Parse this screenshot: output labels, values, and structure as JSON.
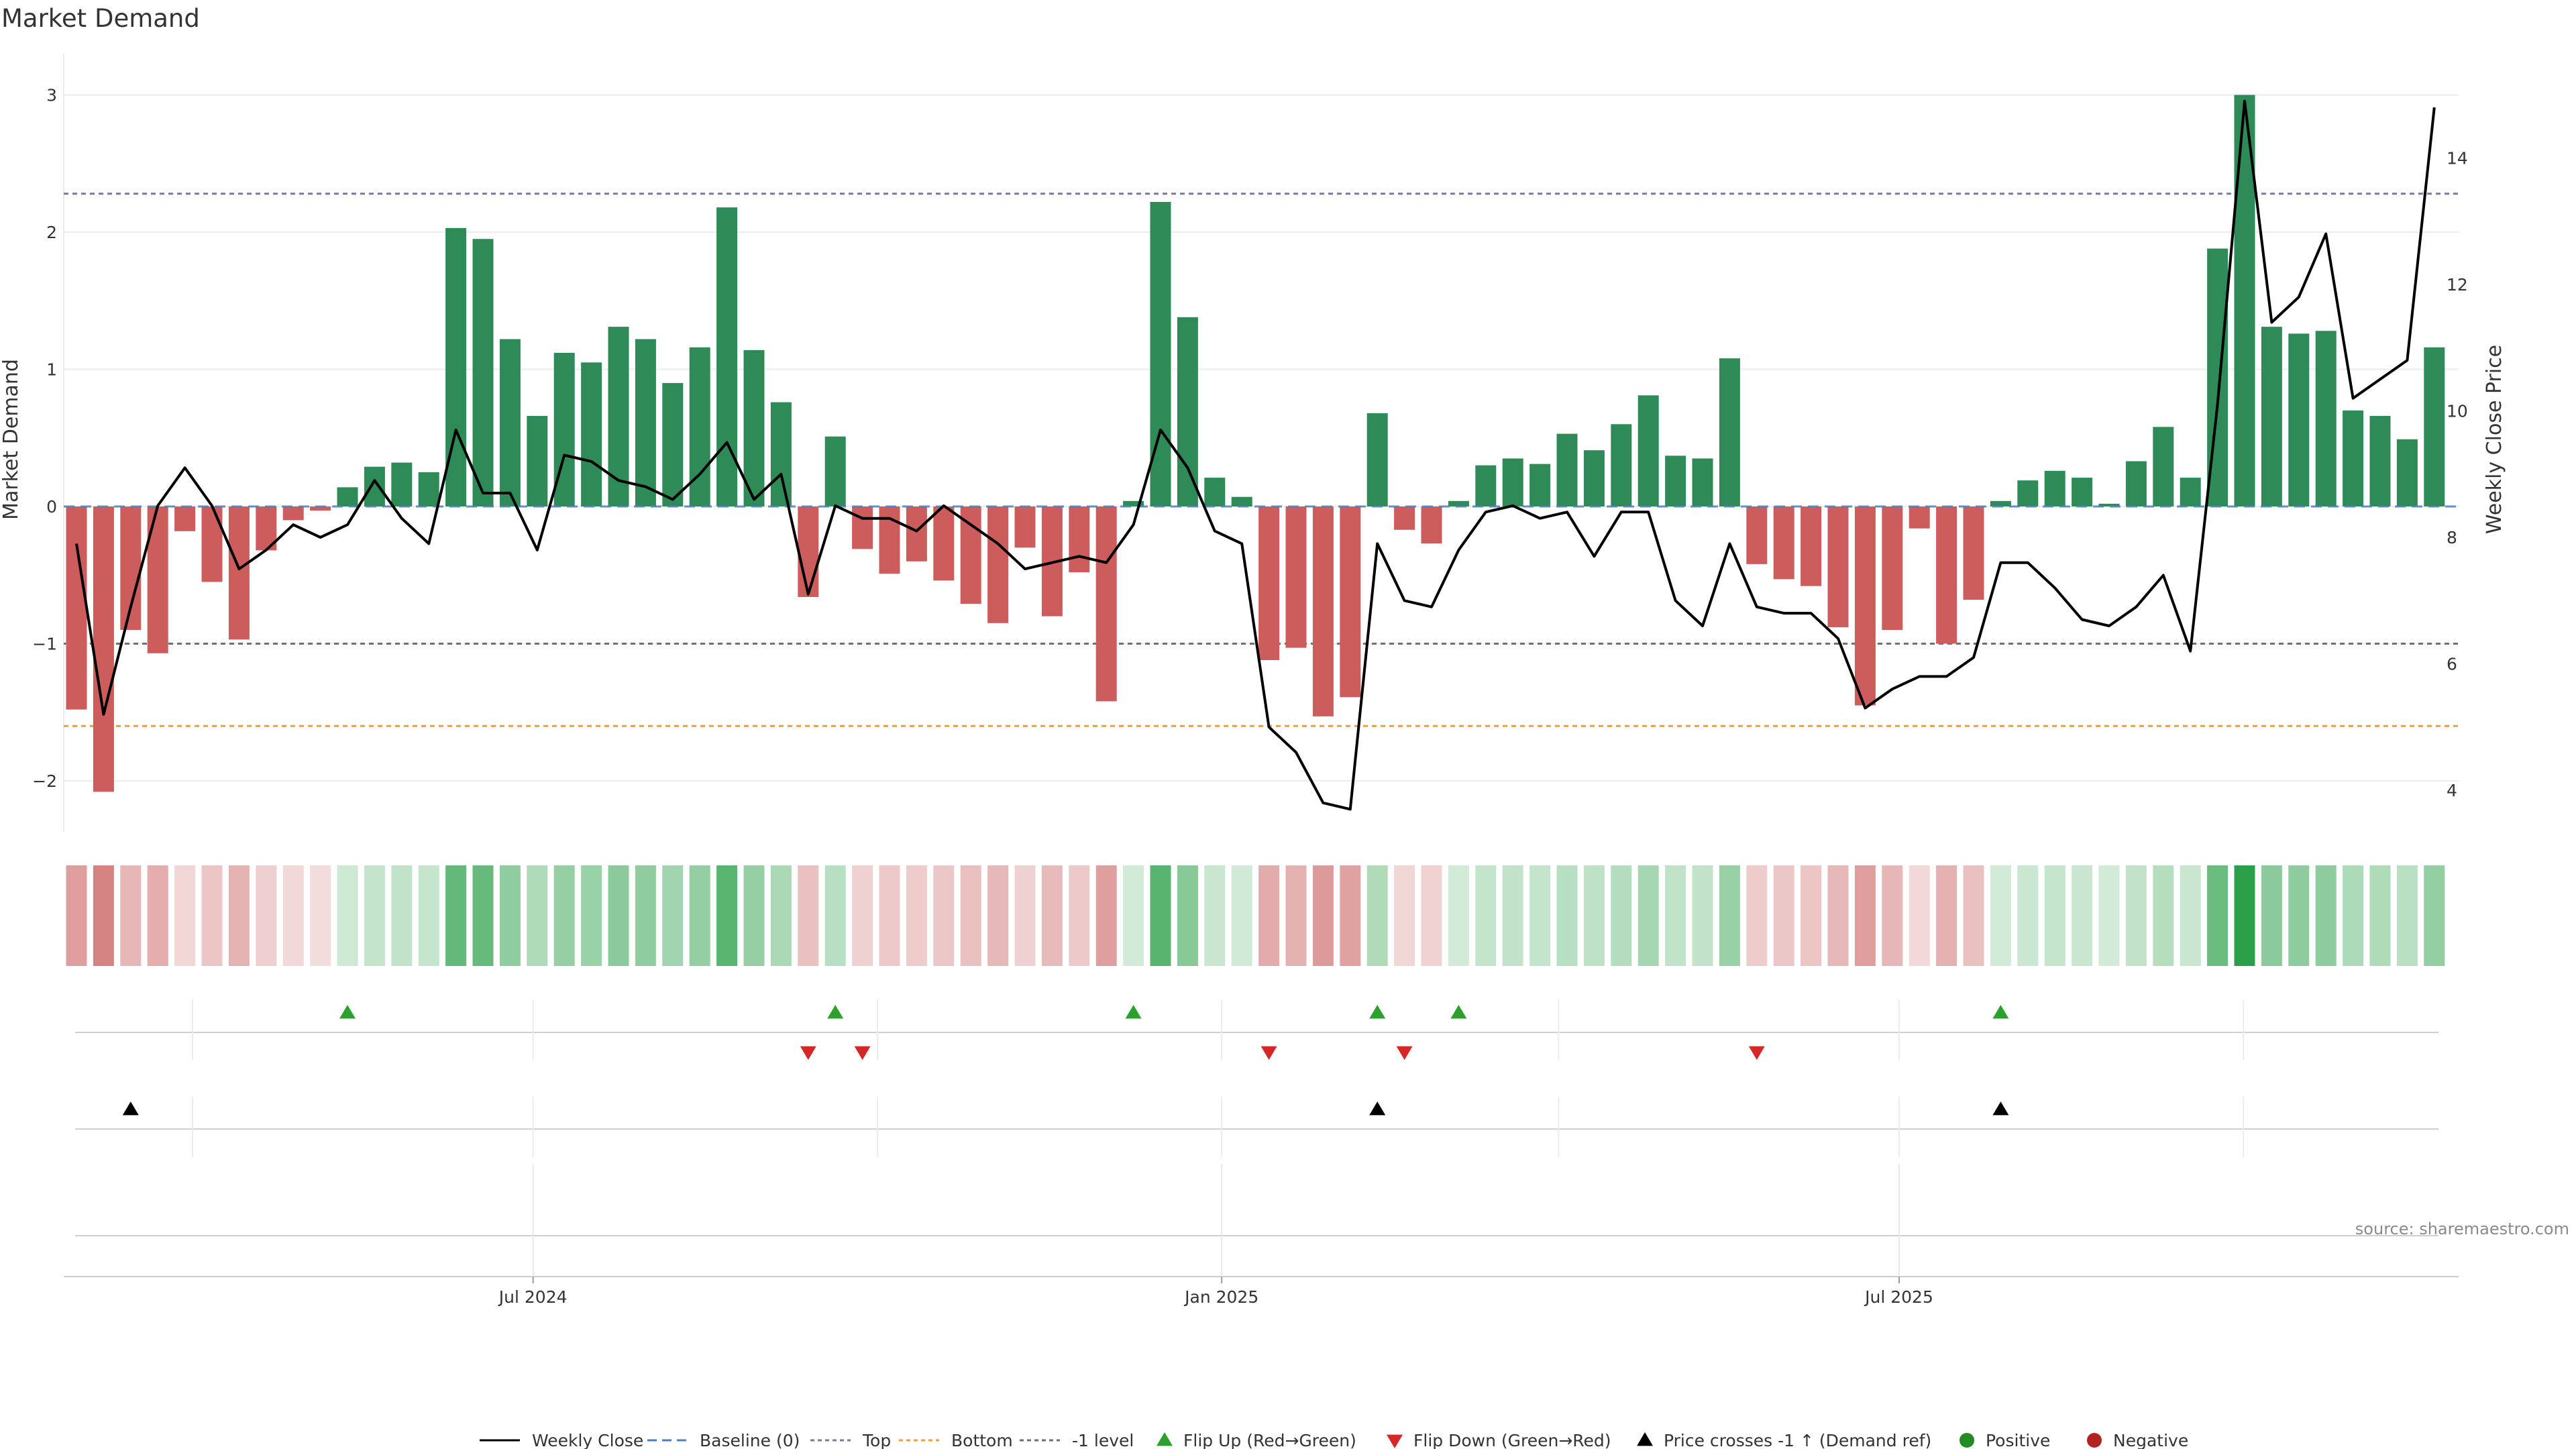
{
  "chart_data": {
    "type": "bar",
    "title": "Market Demand",
    "ylabel": "Market Demand",
    "y2label": "Weekly Close Price",
    "ylim": [
      -2.4,
      3.2
    ],
    "y2lim": [
      3.2,
      15.4
    ],
    "yticks": [
      -2,
      -1,
      0,
      1,
      2,
      3
    ],
    "yticklabels": [
      "−2",
      "−1",
      "0",
      "1",
      "2",
      "3"
    ],
    "y2ticks": [
      4,
      6,
      8,
      10,
      12,
      14
    ],
    "y2ticklabels": [
      "4",
      "6",
      "8",
      "10",
      "12",
      "14"
    ],
    "x_start": "2024-03-01",
    "x_end": "2025-11-21",
    "xticks": [
      {
        "date": "2024-07-01",
        "label": "Jul 2024"
      },
      {
        "date": "2025-01-01",
        "label": "Jan 2025"
      },
      {
        "date": "2025-07-01",
        "label": "Jul 2025"
      }
    ],
    "weekly_grid_dates": [
      "2024-04-01",
      "2024-07-01",
      "2024-10-01",
      "2025-01-01",
      "2025-04-01",
      "2025-07-01",
      "2025-10-01"
    ],
    "levels": {
      "baseline": 0,
      "top": 2.28,
      "bottom": -1.6,
      "minus_one": -1
    },
    "colors": {
      "positive": "#2e8b57",
      "negative": "#cd5c5c",
      "price": "#000000",
      "baseline": "#4a7fc1",
      "top": "#7a7a9e",
      "bottom": "#f0a030",
      "minus_one": "#707070",
      "flip_up": "#2ca02c",
      "flip_down": "#d62728",
      "cross": "#000000",
      "positive_dot": "#228b22",
      "negative_dot": "#b22222"
    },
    "series": [
      {
        "name": "Market Demand",
        "type": "bar",
        "values": [
          -1.48,
          -2.08,
          -0.9,
          -1.07,
          -0.18,
          -0.55,
          -0.97,
          -0.32,
          -0.1,
          -0.03,
          0.14,
          0.29,
          0.32,
          0.25,
          2.03,
          1.95,
          1.22,
          0.66,
          1.12,
          1.05,
          1.31,
          1.22,
          0.9,
          1.16,
          2.18,
          1.14,
          0.76,
          -0.66,
          0.51,
          -0.31,
          -0.49,
          -0.4,
          -0.54,
          -0.71,
          -0.85,
          -0.3,
          -0.8,
          -0.48,
          -1.42,
          0.04,
          2.22,
          1.38,
          0.21,
          0.07,
          -1.12,
          -1.03,
          -1.53,
          -1.39,
          0.68,
          -0.17,
          -0.27,
          0.04,
          0.3,
          0.35,
          0.31,
          0.53,
          0.41,
          0.6,
          0.81,
          0.37,
          0.35,
          1.08,
          -0.42,
          -0.53,
          -0.58,
          -0.88,
          -1.45,
          -0.9,
          -0.16,
          -1.0,
          -0.68,
          0.04,
          0.19,
          0.26,
          0.21,
          0.02,
          0.33,
          0.58,
          0.21,
          1.88,
          3.0,
          1.31,
          1.26,
          1.28,
          0.7,
          0.66,
          0.49,
          1.16
        ]
      },
      {
        "name": "Weekly Close",
        "type": "line",
        "values": [
          7.9,
          5.2,
          6.9,
          8.5,
          9.1,
          8.5,
          7.5,
          7.8,
          8.2,
          8.0,
          8.2,
          8.9,
          8.3,
          7.9,
          9.7,
          8.7,
          8.7,
          7.8,
          9.3,
          9.2,
          8.9,
          8.8,
          8.6,
          9.0,
          9.5,
          8.6,
          9.0,
          7.1,
          8.5,
          8.3,
          8.3,
          8.1,
          8.5,
          8.2,
          7.9,
          7.5,
          7.6,
          7.7,
          7.6,
          8.2,
          9.7,
          9.1,
          8.1,
          7.9,
          5.0,
          4.6,
          3.8,
          3.7,
          7.9,
          7.0,
          6.9,
          7.8,
          8.4,
          8.5,
          8.3,
          8.4,
          7.7,
          8.4,
          8.4,
          7.0,
          6.6,
          7.9,
          6.9,
          6.8,
          6.8,
          6.4,
          5.3,
          5.6,
          5.8,
          5.8,
          6.1,
          7.6,
          7.6,
          7.2,
          6.7,
          6.6,
          6.9,
          7.4,
          6.2,
          10.1,
          14.9,
          11.4,
          11.8,
          12.8,
          10.2,
          10.5,
          10.8,
          14.8
        ]
      }
    ],
    "flip_up_indices": [
      10,
      28,
      39,
      48,
      51,
      71
    ],
    "flip_down_indices": [
      27,
      29,
      44,
      49,
      62
    ],
    "price_cross_indices": [
      2,
      48,
      71
    ],
    "legend": [
      "Weekly Close",
      "Baseline (0)",
      "Top",
      "Bottom",
      "-1 level",
      "Flip Up (Red→Green)",
      "Flip Down (Green→Red)",
      "Price crosses -1 ↑ (Demand ref)",
      "Positive",
      "Negative"
    ],
    "source": "source: sharemaestro.com"
  }
}
